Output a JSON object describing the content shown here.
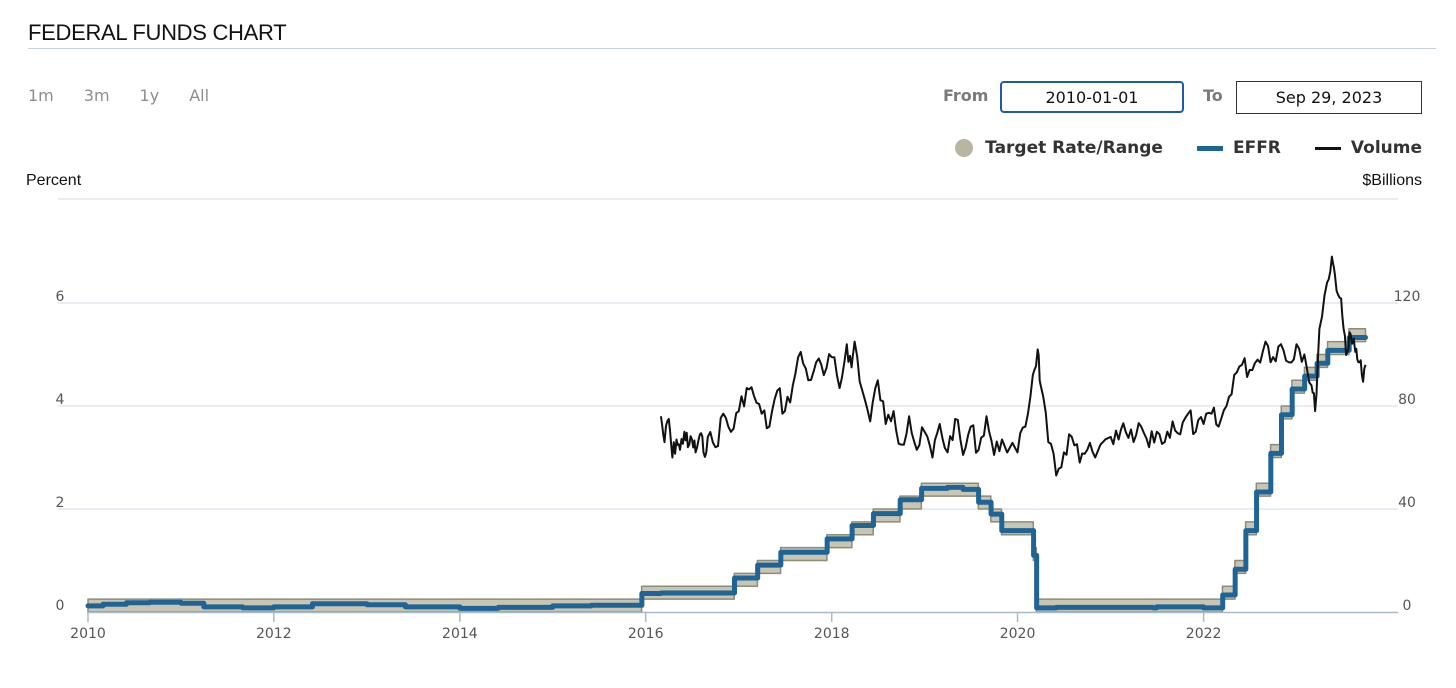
{
  "header": {
    "title": "FEDERAL FUNDS CHART"
  },
  "range_buttons": [
    "1m",
    "3m",
    "1y",
    "All"
  ],
  "date_range": {
    "from_label": "From",
    "from_value": "2010-01-01",
    "to_label": "To",
    "to_value": "Sep 29, 2023"
  },
  "legend": [
    {
      "label": "Target Rate/Range",
      "color": "#b9b69f",
      "shape": "circle"
    },
    {
      "label": "EFFR",
      "color": "#1f6496",
      "shape": "line"
    },
    {
      "label": "Volume",
      "color": "#111111",
      "shape": "line"
    }
  ],
  "chart_data": {
    "type": "line",
    "left_axis": {
      "title": "Percent",
      "ticks": [
        0,
        2,
        4,
        6
      ],
      "range": [
        0,
        8
      ]
    },
    "right_axis": {
      "title": "$Billions",
      "ticks": [
        0,
        40,
        80,
        120
      ],
      "range": [
        0,
        160
      ]
    },
    "x_axis": {
      "ticks": [
        "2010",
        "2012",
        "2014",
        "2016",
        "2018",
        "2020",
        "2022"
      ],
      "range": [
        "2010-01-01",
        "2023-10-01"
      ]
    },
    "series": [
      {
        "name": "Target Rate/Range",
        "axis": "left",
        "kind": "band",
        "points": [
          [
            "2010-01-01",
            0,
            0.25
          ],
          [
            "2015-12-16",
            0.25,
            0.5
          ],
          [
            "2016-12-14",
            0.5,
            0.75
          ],
          [
            "2017-03-15",
            0.75,
            1.0
          ],
          [
            "2017-06-14",
            1.0,
            1.25
          ],
          [
            "2017-12-13",
            1.25,
            1.5
          ],
          [
            "2018-03-21",
            1.5,
            1.75
          ],
          [
            "2018-06-13",
            1.75,
            2.0
          ],
          [
            "2018-09-26",
            2.0,
            2.25
          ],
          [
            "2018-12-19",
            2.25,
            2.5
          ],
          [
            "2019-07-31",
            2.0,
            2.25
          ],
          [
            "2019-09-18",
            1.75,
            2.0
          ],
          [
            "2019-10-30",
            1.5,
            1.75
          ],
          [
            "2020-03-03",
            1.0,
            1.25
          ],
          [
            "2020-03-15",
            0,
            0.25
          ],
          [
            "2022-03-16",
            0.25,
            0.5
          ],
          [
            "2022-05-04",
            0.75,
            1.0
          ],
          [
            "2022-06-15",
            1.5,
            1.75
          ],
          [
            "2022-07-27",
            2.25,
            2.5
          ],
          [
            "2022-09-21",
            3.0,
            3.25
          ],
          [
            "2022-11-02",
            3.75,
            4.0
          ],
          [
            "2022-12-14",
            4.25,
            4.5
          ],
          [
            "2023-02-01",
            4.5,
            4.75
          ],
          [
            "2023-03-22",
            4.75,
            5.0
          ],
          [
            "2023-05-03",
            5.0,
            5.25
          ],
          [
            "2023-07-26",
            5.25,
            5.5
          ],
          [
            "2023-09-29",
            5.25,
            5.5
          ]
        ]
      },
      {
        "name": "EFFR",
        "axis": "left",
        "kind": "step",
        "points": [
          [
            "2010-01-01",
            0.12
          ],
          [
            "2010-03-01",
            0.15
          ],
          [
            "2010-06-01",
            0.18
          ],
          [
            "2010-09-01",
            0.19
          ],
          [
            "2011-01-01",
            0.17
          ],
          [
            "2011-04-01",
            0.1
          ],
          [
            "2011-09-01",
            0.08
          ],
          [
            "2012-01-01",
            0.1
          ],
          [
            "2012-06-01",
            0.16
          ],
          [
            "2013-01-01",
            0.14
          ],
          [
            "2013-06-01",
            0.1
          ],
          [
            "2014-01-01",
            0.07
          ],
          [
            "2014-06-01",
            0.09
          ],
          [
            "2015-01-01",
            0.12
          ],
          [
            "2015-06-01",
            0.13
          ],
          [
            "2015-12-17",
            0.36
          ],
          [
            "2016-03-01",
            0.37
          ],
          [
            "2016-12-15",
            0.66
          ],
          [
            "2017-03-16",
            0.91
          ],
          [
            "2017-06-15",
            1.16
          ],
          [
            "2017-12-14",
            1.42
          ],
          [
            "2018-03-22",
            1.68
          ],
          [
            "2018-06-14",
            1.91
          ],
          [
            "2018-09-27",
            2.18
          ],
          [
            "2018-12-20",
            2.4
          ],
          [
            "2019-04-01",
            2.42
          ],
          [
            "2019-06-01",
            2.38
          ],
          [
            "2019-08-01",
            2.13
          ],
          [
            "2019-09-19",
            1.9
          ],
          [
            "2019-10-31",
            1.58
          ],
          [
            "2020-03-04",
            1.1
          ],
          [
            "2020-03-16",
            0.08
          ],
          [
            "2020-06-01",
            0.09
          ],
          [
            "2021-01-01",
            0.09
          ],
          [
            "2021-06-17",
            0.08
          ],
          [
            "2021-07-01",
            0.1
          ],
          [
            "2022-01-01",
            0.08
          ],
          [
            "2022-03-17",
            0.33
          ],
          [
            "2022-05-05",
            0.83
          ],
          [
            "2022-06-16",
            1.58
          ],
          [
            "2022-07-28",
            2.33
          ],
          [
            "2022-09-22",
            3.08
          ],
          [
            "2022-11-03",
            3.83
          ],
          [
            "2022-12-15",
            4.33
          ],
          [
            "2023-02-02",
            4.58
          ],
          [
            "2023-03-23",
            4.83
          ],
          [
            "2023-05-04",
            5.08
          ],
          [
            "2023-07-27",
            5.33
          ],
          [
            "2023-09-29",
            5.33
          ]
        ]
      },
      {
        "name": "Volume",
        "axis": "right",
        "kind": "line",
        "points": [
          [
            "2016-03-01",
            76
          ],
          [
            "2016-03-15",
            66
          ],
          [
            "2016-04-01",
            75
          ],
          [
            "2016-04-15",
            60
          ],
          [
            "2016-05-01",
            67
          ],
          [
            "2016-05-15",
            63
          ],
          [
            "2016-06-01",
            70
          ],
          [
            "2016-06-15",
            64
          ],
          [
            "2016-07-01",
            67
          ],
          [
            "2016-07-15",
            62
          ],
          [
            "2016-08-01",
            69
          ],
          [
            "2016-08-15",
            62
          ],
          [
            "2016-09-01",
            68
          ],
          [
            "2016-10-01",
            64
          ],
          [
            "2016-11-01",
            77
          ],
          [
            "2016-12-01",
            70
          ],
          [
            "2017-01-01",
            78
          ],
          [
            "2017-02-01",
            87
          ],
          [
            "2017-03-01",
            84
          ],
          [
            "2017-04-01",
            77
          ],
          [
            "2017-05-01",
            72
          ],
          [
            "2017-06-01",
            86
          ],
          [
            "2017-07-01",
            78
          ],
          [
            "2017-08-01",
            88
          ],
          [
            "2017-09-01",
            101
          ],
          [
            "2017-10-01",
            90
          ],
          [
            "2017-11-01",
            97
          ],
          [
            "2017-12-01",
            92
          ],
          [
            "2018-01-01",
            99
          ],
          [
            "2018-02-01",
            87
          ],
          [
            "2018-03-01",
            104
          ],
          [
            "2018-03-20",
            95
          ],
          [
            "2018-04-01",
            105
          ],
          [
            "2018-05-01",
            86
          ],
          [
            "2018-06-01",
            74
          ],
          [
            "2018-07-01",
            90
          ],
          [
            "2018-08-01",
            73
          ],
          [
            "2018-09-01",
            78
          ],
          [
            "2018-10-01",
            65
          ],
          [
            "2018-11-01",
            76
          ],
          [
            "2018-12-01",
            63
          ],
          [
            "2019-01-01",
            70
          ],
          [
            "2019-02-01",
            60
          ],
          [
            "2019-03-01",
            73
          ],
          [
            "2019-04-01",
            62
          ],
          [
            "2019-05-01",
            75
          ],
          [
            "2019-06-01",
            61
          ],
          [
            "2019-07-01",
            72
          ],
          [
            "2019-08-01",
            63
          ],
          [
            "2019-09-01",
            76
          ],
          [
            "2019-10-01",
            61
          ],
          [
            "2019-11-01",
            67
          ],
          [
            "2020-01-01",
            62
          ],
          [
            "2020-02-01",
            72
          ],
          [
            "2020-03-01",
            92
          ],
          [
            "2020-03-20",
            102
          ],
          [
            "2020-04-01",
            88
          ],
          [
            "2020-05-01",
            66
          ],
          [
            "2020-06-01",
            53
          ],
          [
            "2020-07-01",
            62
          ],
          [
            "2020-08-01",
            68
          ],
          [
            "2020-09-01",
            58
          ],
          [
            "2020-10-01",
            63
          ],
          [
            "2020-11-01",
            60
          ],
          [
            "2021-01-01",
            68
          ],
          [
            "2021-02-01",
            67
          ],
          [
            "2021-03-01",
            70
          ],
          [
            "2021-04-01",
            66
          ],
          [
            "2021-05-01",
            72
          ],
          [
            "2021-06-01",
            64
          ],
          [
            "2021-07-01",
            70
          ],
          [
            "2021-08-01",
            66
          ],
          [
            "2021-09-01",
            74
          ],
          [
            "2021-10-01",
            69
          ],
          [
            "2021-11-01",
            77
          ],
          [
            "2021-12-01",
            70
          ],
          [
            "2022-01-01",
            73
          ],
          [
            "2022-02-01",
            77
          ],
          [
            "2022-03-01",
            72
          ],
          [
            "2022-04-01",
            80
          ],
          [
            "2022-05-01",
            92
          ],
          [
            "2022-06-01",
            96
          ],
          [
            "2022-07-01",
            94
          ],
          [
            "2022-08-01",
            98
          ],
          [
            "2022-09-01",
            105
          ],
          [
            "2022-10-01",
            99
          ],
          [
            "2022-11-01",
            104
          ],
          [
            "2022-12-01",
            97
          ],
          [
            "2023-01-01",
            104
          ],
          [
            "2023-02-01",
            100
          ],
          [
            "2023-03-01",
            88
          ],
          [
            "2023-03-15",
            78
          ],
          [
            "2023-04-01",
            110
          ],
          [
            "2023-05-01",
            128
          ],
          [
            "2023-05-20",
            138
          ],
          [
            "2023-06-01",
            131
          ],
          [
            "2023-06-20",
            122
          ],
          [
            "2023-07-05",
            110
          ],
          [
            "2023-07-20",
            101
          ],
          [
            "2023-08-01",
            108
          ],
          [
            "2023-08-20",
            101
          ],
          [
            "2023-09-01",
            97
          ],
          [
            "2023-09-15",
            92
          ],
          [
            "2023-09-29",
            96
          ]
        ]
      }
    ]
  }
}
